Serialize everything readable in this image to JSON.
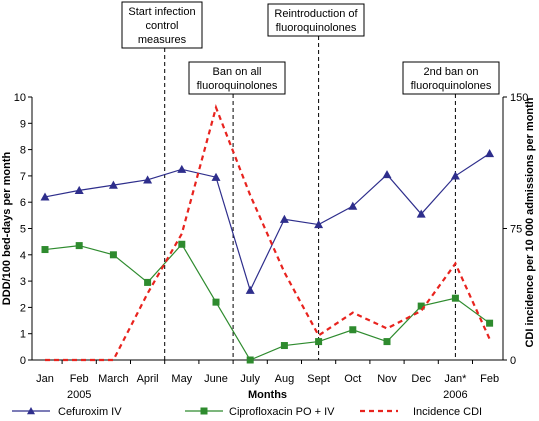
{
  "chart_data": {
    "type": "line",
    "categories": [
      "Jan",
      "Feb",
      "March",
      "April",
      "May",
      "June",
      "July",
      "Aug",
      "Sept",
      "Oct",
      "Nov",
      "Dec",
      "Jan*",
      "Feb"
    ],
    "year_labels": [
      {
        "text": "2005",
        "category_index": 1
      },
      {
        "text": "2006",
        "category_index": 12
      }
    ],
    "xlabel": "Months",
    "ylabel_left": "DDD/100 bed-days per month",
    "ylabel_right": "CDI incidence per 10 000 admissions per month",
    "ylim_left": [
      0,
      10
    ],
    "yticks_left": [
      0,
      1,
      2,
      3,
      4,
      5,
      6,
      7,
      8,
      9,
      10
    ],
    "ylim_right": [
      0,
      150
    ],
    "yticks_right": [
      0,
      75,
      150
    ],
    "series": [
      {
        "name": "Cefuroxim IV",
        "axis": "left",
        "color": "#2e2e8c",
        "marker": "triangle",
        "style": "solid",
        "values": [
          6.2,
          6.45,
          6.65,
          6.85,
          7.25,
          6.95,
          2.65,
          5.35,
          5.15,
          5.85,
          7.05,
          5.55,
          7.0,
          7.85
        ]
      },
      {
        "name": "Ciprofloxacin PO + IV",
        "axis": "left",
        "color": "#2e8b2e",
        "marker": "square",
        "style": "solid",
        "values": [
          4.2,
          4.35,
          4.0,
          2.95,
          4.4,
          2.2,
          0.0,
          0.55,
          0.7,
          1.15,
          0.7,
          2.05,
          2.35,
          1.4
        ]
      },
      {
        "name": "Incidence CDI",
        "axis": "right",
        "color": "#e8231e",
        "marker": "none",
        "style": "dashed",
        "values": [
          0,
          0,
          0,
          38,
          72,
          144,
          94,
          50,
          14,
          27,
          18,
          28,
          55,
          12
        ]
      }
    ],
    "annotations": [
      {
        "lines": [
          "Start infection",
          "control",
          "measures"
        ],
        "x_between": [
          3,
          4
        ]
      },
      {
        "lines": [
          "Ban on all",
          "fluoroquinolones"
        ],
        "x_between": [
          5,
          6
        ]
      },
      {
        "lines": [
          "Reintroduction of",
          "fluoroquinolones"
        ],
        "x_between": [
          8,
          8
        ]
      },
      {
        "lines": [
          "2nd ban on",
          "fluoroquinolones"
        ],
        "x_between": [
          12,
          12
        ]
      }
    ],
    "legend_position": "bottom",
    "grid": false
  }
}
